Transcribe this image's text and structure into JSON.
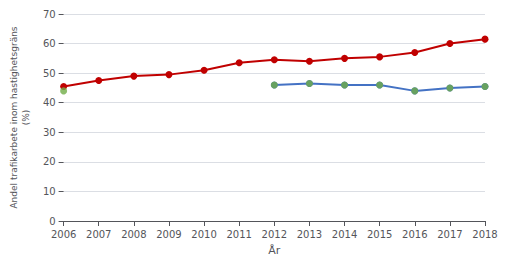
{
  "chart_data": {
    "type": "line",
    "ylabel": "Andel trafikarbete inom hastighetsgräns\n(%)",
    "xlabel": "År",
    "x": [
      2006,
      2007,
      2008,
      2009,
      2010,
      2011,
      2012,
      2013,
      2014,
      2015,
      2016,
      2017,
      2018
    ],
    "series": [
      {
        "color": "#c00000",
        "marker": "circle",
        "type": "line",
        "values": [
          45.5,
          47.5,
          49.0,
          49.5,
          51.0,
          53.5,
          54.5,
          54.0,
          55.0,
          55.5,
          57.0,
          60.0,
          61.5
        ]
      },
      {
        "color": "#4472c4",
        "marker": "circle",
        "type": "line",
        "values": [
          null,
          null,
          null,
          null,
          null,
          null,
          46.0,
          46.5,
          46.0,
          46.0,
          44.0,
          45.0,
          45.5
        ]
      },
      {
        "color": "#70ad47",
        "marker": "circle",
        "type": "scatter",
        "values": [
          44.0,
          null,
          null,
          null,
          null,
          null,
          46.0,
          46.5,
          46.0,
          46.0,
          44.0,
          45.0,
          45.5
        ]
      }
    ],
    "xlim": [
      2006,
      2018
    ],
    "xticks": [
      2006,
      2007,
      2008,
      2009,
      2010,
      2011,
      2012,
      2013,
      2014,
      2015,
      2016,
      2017,
      2018
    ],
    "ylim": [
      0,
      70
    ],
    "yticks": [
      0,
      10,
      20,
      30,
      40,
      50,
      60,
      70
    ],
    "grid": true
  }
}
